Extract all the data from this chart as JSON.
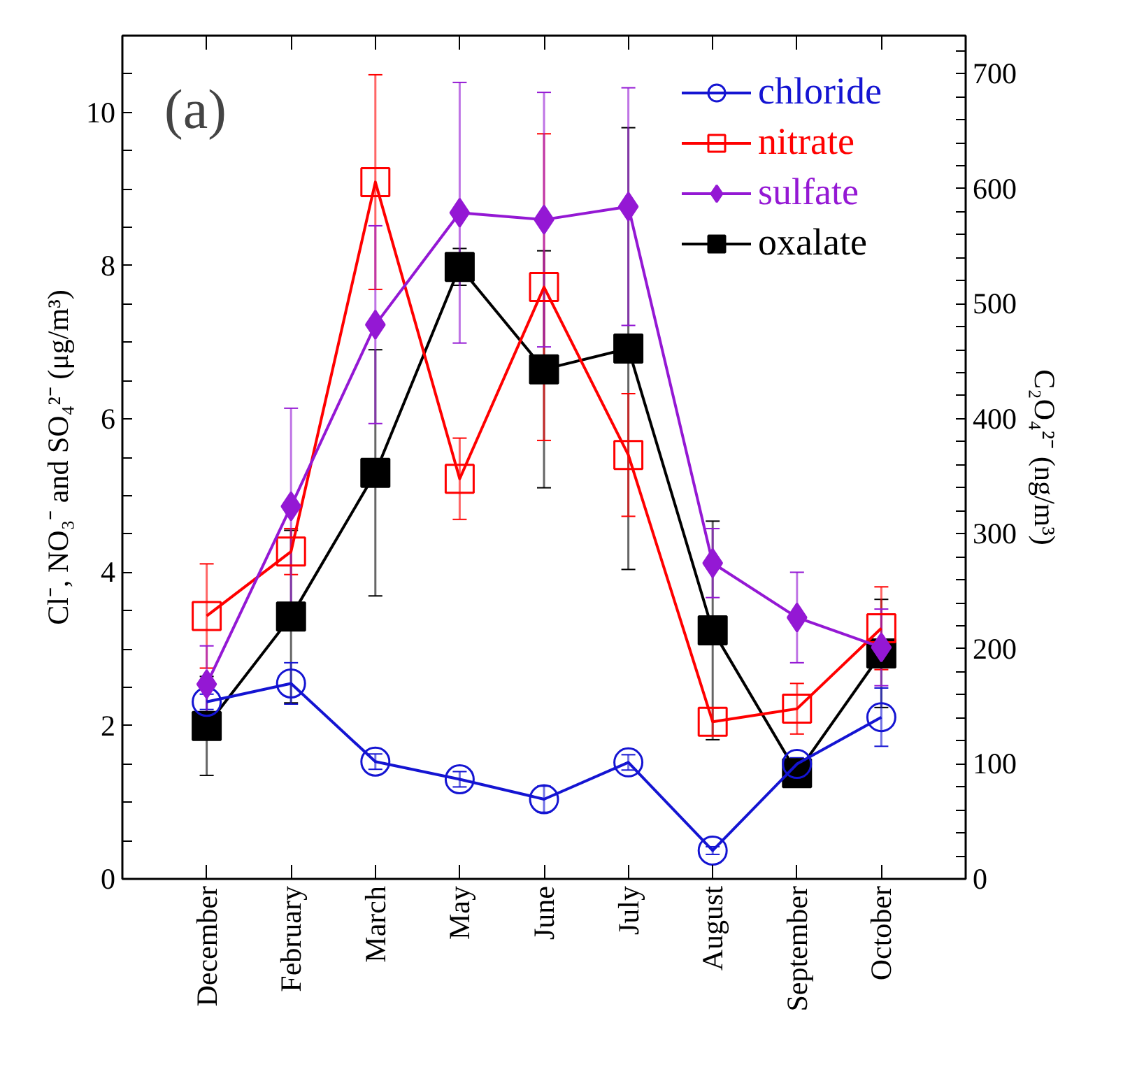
{
  "chart_data": {
    "type": "line",
    "categories": [
      "December",
      "February",
      "March",
      "May",
      "June",
      "July",
      "August",
      "September",
      "October"
    ],
    "ylabel": "Cl⁻, NO₃⁻ and SO₄²⁻ (μg/m³)",
    "y2label": "C₂O₄²⁻ (ng/m³)",
    "annotations": [
      "(a)"
    ],
    "ylim": [
      0,
      11
    ],
    "yticks": [
      0,
      {
        "value": 0.5,
        "label": null
      },
      {
        "value": 1,
        "label": null
      },
      {
        "value": 1.5,
        "label": null
      },
      2,
      {
        "value": 2.5,
        "label": null
      },
      {
        "value": 3,
        "label": null
      },
      {
        "value": 3.5,
        "label": null
      },
      4,
      {
        "value": 4.5,
        "label": null
      },
      {
        "value": 5,
        "label": null
      },
      {
        "value": 5.5,
        "label": null
      },
      6,
      {
        "value": 6.5,
        "label": null
      },
      {
        "value": 7,
        "label": null
      },
      {
        "value": 7.5,
        "label": null
      },
      8,
      {
        "value": 8.5,
        "label": null
      },
      {
        "value": 9,
        "label": null
      },
      {
        "value": 9.5,
        "label": null
      },
      10,
      {
        "value": 10.5,
        "label": null
      }
    ],
    "y2lim": [
      0,
      733
    ],
    "y2ticks": [
      0,
      {
        "value": 20,
        "label": null
      },
      {
        "value": 40,
        "label": null
      },
      {
        "value": 60,
        "label": null
      },
      {
        "value": 80,
        "label": null
      },
      100,
      {
        "value": 120,
        "label": null
      },
      {
        "value": 140,
        "label": null
      },
      {
        "value": 160,
        "label": null
      },
      {
        "value": 180,
        "label": null
      },
      200,
      {
        "value": 220,
        "label": null
      },
      {
        "value": 240,
        "label": null
      },
      {
        "value": 260,
        "label": null
      },
      {
        "value": 280,
        "label": null
      },
      300,
      {
        "value": 320,
        "label": null
      },
      {
        "value": 340,
        "label": null
      },
      {
        "value": 360,
        "label": null
      },
      {
        "value": 380,
        "label": null
      },
      400,
      {
        "value": 420,
        "label": null
      },
      {
        "value": 440,
        "label": null
      },
      {
        "value": 460,
        "label": null
      },
      {
        "value": 480,
        "label": null
      },
      500,
      {
        "value": 520,
        "label": null
      },
      {
        "value": 540,
        "label": null
      },
      {
        "value": 560,
        "label": null
      },
      {
        "value": 580,
        "label": null
      },
      600,
      {
        "value": 620,
        "label": null
      },
      {
        "value": 640,
        "label": null
      },
      {
        "value": 660,
        "label": null
      },
      {
        "value": 680,
        "label": null
      },
      700,
      {
        "value": 720,
        "label": null
      }
    ],
    "legend": "top right",
    "grid": false,
    "series": [
      {
        "name": "chloride",
        "color": "#1414d2",
        "marker": "circle",
        "values": [
          2.31,
          2.55,
          1.53,
          1.3,
          1.04,
          1.52,
          0.37,
          1.5,
          2.11
        ],
        "errors": [
          0.1,
          0.27,
          0.1,
          0.1,
          0.17,
          0.1,
          0.05,
          0.08,
          0.38
        ]
      },
      {
        "name": "nitrate",
        "color": "#ff0000",
        "marker": "square",
        "values": [
          3.43,
          4.27,
          9.09,
          5.22,
          7.72,
          5.53,
          2.05,
          2.22,
          3.27
        ],
        "errors": [
          0.68,
          0.3,
          1.4,
          0.53,
          2.0,
          0.8,
          0.18,
          0.33,
          0.54
        ]
      },
      {
        "name": "sulfate",
        "color": "#9418d4",
        "marker": "diamond",
        "values": [
          2.54,
          4.86,
          7.23,
          8.69,
          8.6,
          8.77,
          4.12,
          3.41,
          3.02
        ],
        "errors": [
          0.5,
          1.28,
          1.29,
          1.7,
          1.66,
          1.55,
          0.45,
          0.59,
          0.5
        ]
      },
      {
        "name": "oxalate",
        "color": "#000000",
        "marker": "square",
        "axis": "y2",
        "values": [
          133,
          228,
          353,
          532,
          443,
          461,
          216,
          92,
          196
        ],
        "errors": [
          43,
          75,
          107,
          16,
          103,
          192,
          95,
          7,
          47
        ]
      }
    ]
  }
}
